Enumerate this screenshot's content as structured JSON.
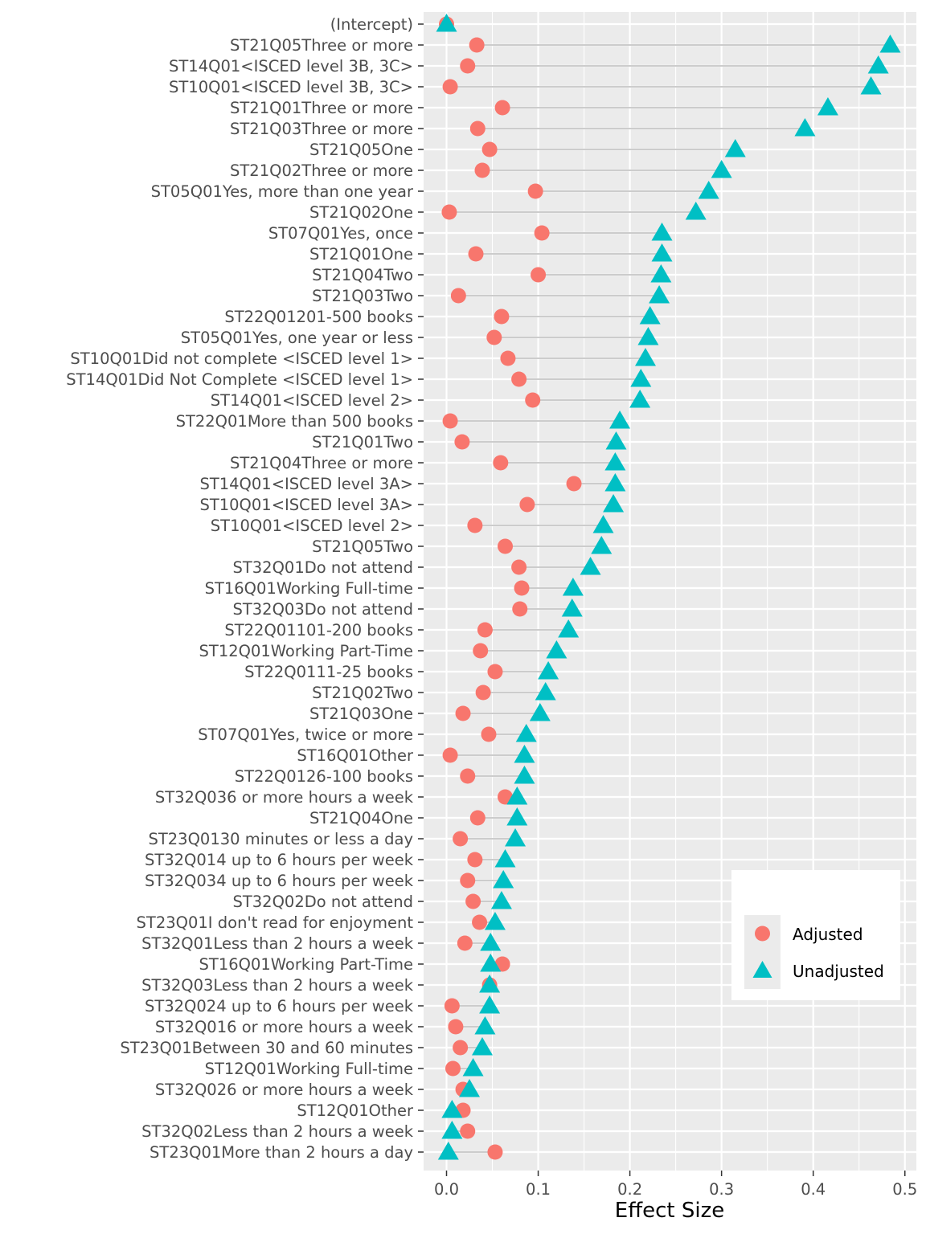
{
  "chart_data": {
    "type": "scatter",
    "title": "",
    "xlabel": "Effect Size",
    "ylabel": "",
    "xlim": [
      -0.025,
      0.5125
    ],
    "x_ticks": [
      0.0,
      0.1,
      0.2,
      0.3,
      0.4,
      0.5
    ],
    "x_tick_labels": [
      "0.0",
      "0.1",
      "0.2",
      "0.3",
      "0.4",
      "0.5"
    ],
    "grid": true,
    "legend_position": "right",
    "colors": {
      "Adjusted": "#F8766D",
      "Unadjusted": "#00BFC4",
      "segment": "#cccccc",
      "panel": "#EBEBEB"
    },
    "categories": [
      "(Intercept)",
      "ST21Q05Three or more",
      "ST14Q01<ISCED level 3B, 3C>",
      "ST10Q01<ISCED level 3B, 3C>",
      "ST21Q01Three or more",
      "ST21Q03Three or more",
      "ST21Q05One",
      "ST21Q02Three or more",
      "ST05Q01Yes, more than one year",
      "ST21Q02One",
      "ST07Q01Yes, once",
      "ST21Q01One",
      "ST21Q04Two",
      "ST21Q03Two",
      "ST22Q01201-500 books",
      "ST05Q01Yes, one year or less",
      "ST10Q01Did not complete <ISCED level 1>",
      "ST14Q01Did Not Complete <ISCED level 1>",
      "ST14Q01<ISCED level 2>",
      "ST22Q01More than 500 books",
      "ST21Q01Two",
      "ST21Q04Three or more",
      "ST14Q01<ISCED level 3A>",
      "ST10Q01<ISCED level 3A>",
      "ST10Q01<ISCED level 2>",
      "ST21Q05Two",
      "ST32Q01Do not attend",
      "ST16Q01Working Full-time",
      "ST32Q03Do not attend",
      "ST22Q01101-200 books",
      "ST12Q01Working Part-Time",
      "ST22Q0111-25 books",
      "ST21Q02Two",
      "ST21Q03One",
      "ST07Q01Yes, twice or more",
      "ST16Q01Other",
      "ST22Q0126-100 books",
      "ST32Q036 or more hours a week",
      "ST21Q04One",
      "ST23Q0130 minutes or less a day",
      "ST32Q014 up to 6 hours per week",
      "ST32Q034 up to 6 hours per week",
      "ST32Q02Do not attend",
      "ST23Q01I don't read for enjoyment",
      "ST32Q01Less than 2 hours a week",
      "ST16Q01Working Part-Time",
      "ST32Q03Less than 2 hours a week",
      "ST32Q024 up to 6 hours per week",
      "ST32Q016 or more hours a week",
      "ST23Q01Between 30 and 60 minutes",
      "ST12Q01Working Full-time",
      "ST32Q026 or more hours a week",
      "ST12Q01Other",
      "ST32Q02Less than 2 hours a week",
      "ST23Q01More than 2 hours a day"
    ],
    "series": [
      {
        "name": "Adjusted",
        "shape": "circle",
        "values": [
          0.0,
          0.033,
          0.023,
          0.004,
          0.061,
          0.034,
          0.047,
          0.039,
          0.097,
          0.003,
          0.104,
          0.032,
          0.1,
          0.013,
          0.06,
          0.052,
          0.067,
          0.079,
          0.094,
          0.004,
          0.017,
          0.059,
          0.139,
          0.088,
          0.031,
          0.064,
          0.079,
          0.082,
          0.08,
          0.042,
          0.037,
          0.053,
          0.04,
          0.018,
          0.046,
          0.004,
          0.023,
          0.064,
          0.034,
          0.015,
          0.031,
          0.023,
          0.029,
          0.036,
          0.02,
          0.061,
          0.047,
          0.006,
          0.01,
          0.015,
          0.007,
          0.018,
          0.018,
          0.023,
          0.053
        ]
      },
      {
        "name": "Unadjusted",
        "shape": "triangle",
        "values": [
          0.0,
          0.484,
          0.471,
          0.463,
          0.416,
          0.391,
          0.315,
          0.3,
          0.286,
          0.272,
          0.235,
          0.235,
          0.234,
          0.232,
          0.222,
          0.22,
          0.217,
          0.212,
          0.211,
          0.189,
          0.185,
          0.184,
          0.184,
          0.182,
          0.171,
          0.169,
          0.157,
          0.138,
          0.137,
          0.133,
          0.12,
          0.111,
          0.108,
          0.102,
          0.087,
          0.085,
          0.085,
          0.077,
          0.077,
          0.075,
          0.064,
          0.062,
          0.06,
          0.053,
          0.048,
          0.048,
          0.047,
          0.047,
          0.042,
          0.039,
          0.029,
          0.025,
          0.006,
          0.006,
          0.002
        ]
      }
    ]
  }
}
